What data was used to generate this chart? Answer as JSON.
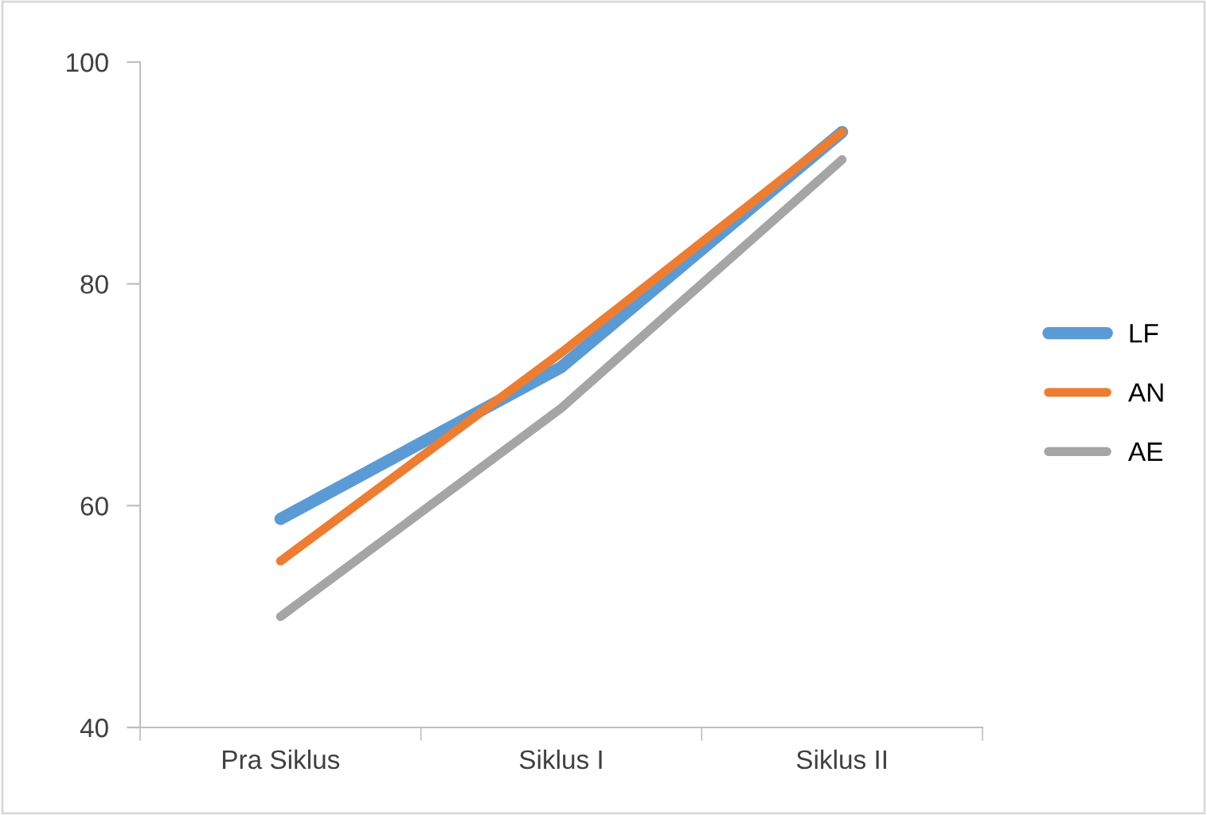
{
  "chart_data": {
    "type": "line",
    "categories": [
      "Pra Siklus",
      "Siklus I",
      "Siklus II"
    ],
    "series": [
      {
        "name": "LF",
        "color": "#5b9bd5",
        "values": [
          58.8,
          72.5,
          93.7
        ]
      },
      {
        "name": "AN",
        "color": "#ed7d31",
        "values": [
          55.0,
          73.8,
          93.7
        ]
      },
      {
        "name": "AE",
        "color": "#a5a5a5",
        "values": [
          50.0,
          68.8,
          91.2
        ]
      }
    ],
    "ylim": [
      40,
      100
    ],
    "yticks": [
      40,
      60,
      80,
      100
    ],
    "grid": false,
    "legend": "right",
    "marker": "none",
    "line_style": "solid"
  }
}
